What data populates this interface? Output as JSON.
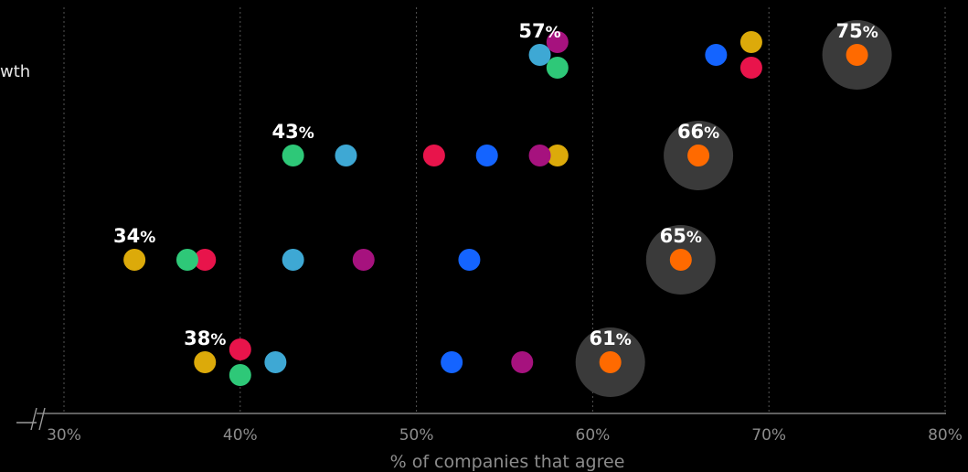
{
  "chart_data": {
    "type": "scatter",
    "title": "",
    "xlabel": "% of companies that agree",
    "ylabel": "",
    "xlim": [
      30,
      80
    ],
    "x_ticks": [
      "30%",
      "40%",
      "50%",
      "60%",
      "70%",
      "80%"
    ],
    "x_tick_values": [
      30,
      40,
      50,
      60,
      70,
      80
    ],
    "grid": "vertical dotted",
    "row_labels": [
      "wth",
      "",
      "",
      ""
    ],
    "colors": {
      "orange": "#ff6a00",
      "yellow": "#dcaa0a",
      "red": "#e8144b",
      "blue": "#1464ff",
      "green": "#2ec878",
      "cyan": "#3ea8d4",
      "purple": "#a6127e",
      "halo": "#3a3a3a",
      "grid": "#555555",
      "axis": "#999999"
    },
    "rows": [
      {
        "min_label": {
          "number": "57",
          "suffix": "%"
        },
        "max_label": {
          "number": "75",
          "suffix": "%"
        },
        "points": [
          {
            "x": 75,
            "color": "orange",
            "highlight": true
          },
          {
            "x": 69,
            "color": "yellow"
          },
          {
            "x": 69,
            "color": "red"
          },
          {
            "x": 67,
            "color": "blue"
          },
          {
            "x": 58,
            "color": "purple"
          },
          {
            "x": 58,
            "color": "green"
          },
          {
            "x": 57,
            "color": "cyan"
          }
        ]
      },
      {
        "min_label": {
          "number": "43",
          "suffix": "%"
        },
        "max_label": {
          "number": "66",
          "suffix": "%"
        },
        "points": [
          {
            "x": 66,
            "color": "orange",
            "highlight": true
          },
          {
            "x": 58,
            "color": "yellow"
          },
          {
            "x": 57,
            "color": "purple"
          },
          {
            "x": 54,
            "color": "blue"
          },
          {
            "x": 51,
            "color": "red"
          },
          {
            "x": 46,
            "color": "cyan"
          },
          {
            "x": 43,
            "color": "green"
          }
        ]
      },
      {
        "min_label": {
          "number": "34",
          "suffix": "%"
        },
        "max_label": {
          "number": "65",
          "suffix": "%"
        },
        "points": [
          {
            "x": 65,
            "color": "orange",
            "highlight": true
          },
          {
            "x": 53,
            "color": "blue"
          },
          {
            "x": 47,
            "color": "purple"
          },
          {
            "x": 43,
            "color": "cyan"
          },
          {
            "x": 38,
            "color": "red"
          },
          {
            "x": 37,
            "color": "green"
          },
          {
            "x": 34,
            "color": "yellow"
          }
        ]
      },
      {
        "min_label": {
          "number": "38",
          "suffix": "%"
        },
        "max_label": {
          "number": "61",
          "suffix": "%"
        },
        "points": [
          {
            "x": 61,
            "color": "orange",
            "highlight": true
          },
          {
            "x": 56,
            "color": "purple"
          },
          {
            "x": 52,
            "color": "blue"
          },
          {
            "x": 42,
            "color": "cyan"
          },
          {
            "x": 40,
            "color": "red"
          },
          {
            "x": 40,
            "color": "green"
          },
          {
            "x": 38,
            "color": "yellow"
          }
        ]
      }
    ]
  }
}
